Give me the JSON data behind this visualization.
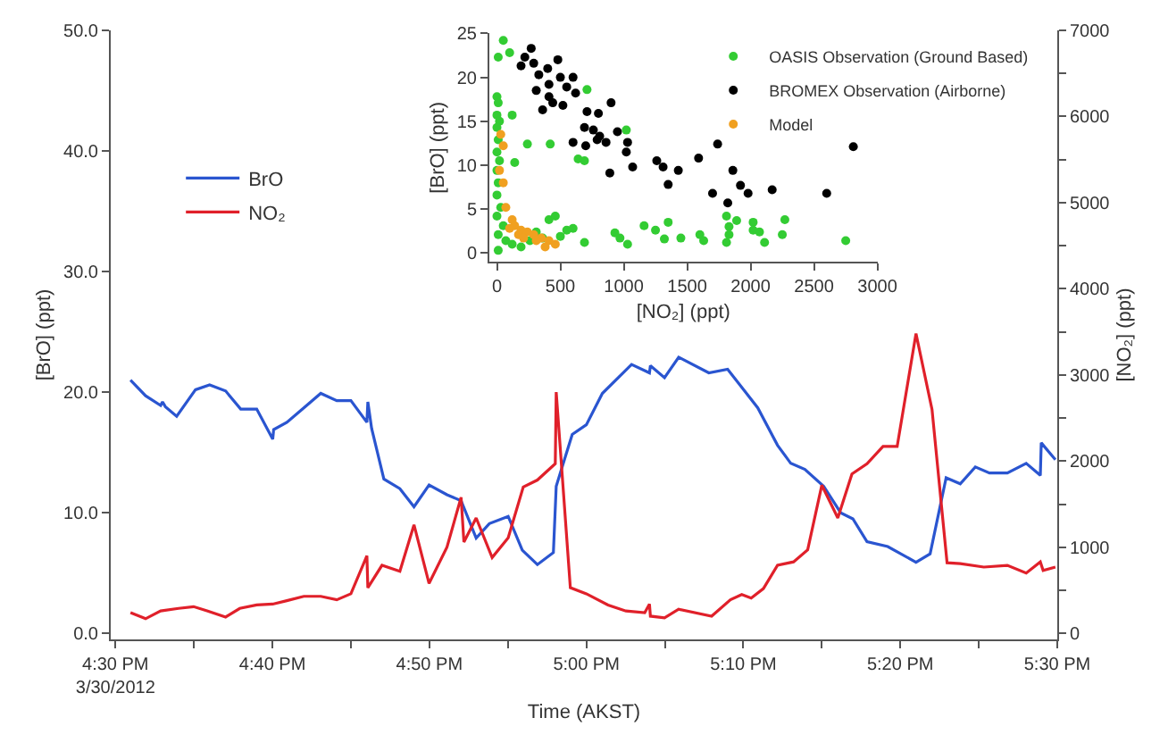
{
  "chart_data": [
    {
      "type": "line",
      "xlabel": "Time (AKST)",
      "ylabel": "[BrO] (ppt)",
      "y2label": "[NO₂] (ppt)",
      "legend": "top left",
      "xlim": [
        16.495,
        17.5
      ],
      "xticks": [
        {
          "value": 16.5,
          "label": "4:30 PM\n3/30/2012"
        },
        {
          "value": 16.5833,
          "label": null
        },
        {
          "value": 16.6667,
          "label": "4:40 PM"
        },
        {
          "value": 16.75,
          "label": null
        },
        {
          "value": 16.8333,
          "label": "4:50 PM"
        },
        {
          "value": 16.9167,
          "label": null
        },
        {
          "value": 17.0,
          "label": "5:00 PM"
        },
        {
          "value": 17.0833,
          "label": null
        },
        {
          "value": 17.1667,
          "label": "5:10 PM"
        },
        {
          "value": 17.25,
          "label": null
        },
        {
          "value": 17.3333,
          "label": "5:20 PM"
        },
        {
          "value": 17.4167,
          "label": null
        },
        {
          "value": 17.5,
          "label": "5:30 PM"
        }
      ],
      "ylim": [
        -0.5,
        50
      ],
      "yticks": [
        {
          "value": 0,
          "label": "0.0"
        },
        {
          "value": 10,
          "label": "10.0"
        },
        {
          "value": 20,
          "label": "20.0"
        },
        {
          "value": 30,
          "label": "30.0"
        },
        {
          "value": 40,
          "label": "40.0"
        },
        {
          "value": 50,
          "label": "50.0"
        }
      ],
      "y2lim": [
        -70,
        7000
      ],
      "y2ticks": [
        0,
        {
          "value": 500,
          "label": null
        },
        1000,
        {
          "value": 1500,
          "label": null
        },
        2000,
        {
          "value": 2500,
          "label": null
        },
        3000,
        {
          "value": 3500,
          "label": null
        },
        4000,
        {
          "value": 4500,
          "label": null
        },
        5000,
        {
          "value": 5500,
          "label": null
        },
        6000,
        {
          "value": 6500,
          "label": null
        },
        7000
      ],
      "series": [
        {
          "name": "BrO",
          "color": "#2a55d0",
          "x": [
            16.516,
            16.532,
            16.548,
            16.55,
            16.553,
            16.565,
            16.585,
            16.6,
            16.617,
            16.633,
            16.65,
            16.667,
            16.668,
            16.682,
            16.7,
            16.718,
            16.735,
            16.75,
            16.767,
            16.768,
            16.772,
            16.785,
            16.802,
            16.817,
            16.833,
            16.852,
            16.867,
            16.883,
            16.897,
            16.917,
            16.932,
            16.948,
            16.965,
            16.968,
            16.985,
            17.0,
            17.017,
            17.048,
            17.067,
            17.068,
            17.083,
            17.098,
            17.13,
            17.15,
            17.168,
            17.182,
            17.203,
            17.217,
            17.232,
            17.252,
            17.27,
            17.283,
            17.298,
            17.32,
            17.35,
            17.365,
            17.382,
            17.397,
            17.413,
            17.428,
            17.447,
            17.467,
            17.482,
            17.483,
            17.498
          ],
          "values": [
            21.0,
            19.7,
            18.9,
            19.2,
            18.8,
            18.0,
            20.2,
            20.6,
            20.1,
            18.6,
            18.6,
            16.1,
            16.9,
            17.5,
            18.7,
            19.9,
            19.3,
            19.3,
            17.5,
            19.2,
            17.0,
            12.8,
            12.0,
            10.5,
            12.3,
            11.5,
            11.0,
            7.9,
            9.1,
            9.7,
            6.9,
            5.7,
            6.7,
            12.2,
            16.5,
            17.3,
            19.9,
            22.3,
            21.6,
            22.2,
            21.2,
            22.9,
            21.6,
            21.9,
            20.1,
            18.7,
            15.6,
            14.1,
            13.6,
            12.2,
            10.0,
            9.5,
            7.6,
            7.2,
            5.9,
            6.6,
            12.9,
            12.4,
            13.8,
            13.3,
            13.3,
            14.1,
            13.1,
            15.8,
            14.4
          ]
        },
        {
          "name": "NO₂",
          "color": "#e0202a",
          "axis": "y2",
          "x": [
            16.516,
            16.532,
            16.548,
            16.567,
            16.583,
            16.598,
            16.617,
            16.632,
            16.65,
            16.667,
            16.682,
            16.7,
            16.718,
            16.735,
            16.75,
            16.767,
            16.768,
            16.783,
            16.802,
            16.817,
            16.833,
            16.852,
            16.867,
            16.87,
            16.883,
            16.9,
            16.917,
            16.933,
            16.948,
            16.967,
            16.968,
            16.983,
            17.0,
            17.023,
            17.042,
            17.062,
            17.067,
            17.068,
            17.083,
            17.098,
            17.133,
            17.153,
            17.165,
            17.175,
            17.188,
            17.203,
            17.22,
            17.235,
            17.25,
            17.267,
            17.282,
            17.298,
            17.315,
            17.33,
            17.35,
            17.367,
            17.383,
            17.397,
            17.422,
            17.447,
            17.467,
            17.482,
            17.485,
            17.498
          ],
          "values": [
            240,
            170,
            260,
            290,
            310,
            260,
            190,
            290,
            330,
            340,
            380,
            430,
            430,
            390,
            460,
            900,
            530,
            790,
            720,
            1260,
            580,
            1000,
            1580,
            1060,
            1340,
            880,
            1110,
            1700,
            1780,
            1970,
            2800,
            530,
            460,
            330,
            260,
            240,
            340,
            200,
            180,
            280,
            200,
            390,
            450,
            410,
            520,
            790,
            830,
            970,
            1720,
            1340,
            1850,
            1970,
            2170,
            2170,
            3480,
            2600,
            820,
            810,
            770,
            790,
            700,
            830,
            730,
            770
          ]
        }
      ]
    },
    {
      "type": "scatter",
      "xlabel": "[NO₂] (ppt)",
      "ylabel": "[BrO] (ppt)",
      "legend": "top right",
      "marker": "circle",
      "xlim": [
        -60,
        3000
      ],
      "xticks": [
        0,
        500,
        1000,
        1500,
        2000,
        2500,
        3000
      ],
      "ylim": [
        -1,
        25
      ],
      "yticks": [
        0,
        5,
        10,
        15,
        20,
        25
      ],
      "series": [
        {
          "name": "OASIS Observation (Ground Based)",
          "color": "#33cc33",
          "x": [
            50,
            10,
            100,
            0,
            10,
            0,
            20,
            120,
            0,
            10,
            0,
            20,
            0,
            10,
            0,
            30,
            0,
            50,
            10,
            70,
            120,
            190,
            260,
            10,
            140,
            240,
            410,
            460,
            420,
            640,
            690,
            710,
            600,
            690,
            500,
            550,
            360,
            310,
            930,
            970,
            1030,
            1020,
            1160,
            1250,
            1320,
            1350,
            1450,
            1600,
            1630,
            1810,
            1890,
            1810,
            1830,
            2020,
            2020,
            2070,
            2110,
            2250,
            2270,
            2750,
            1830
          ],
          "values": [
            24.2,
            22.3,
            22.8,
            17.8,
            17.1,
            15.7,
            15.0,
            15.7,
            14.3,
            12.9,
            11.5,
            10.5,
            9.4,
            8.0,
            6.6,
            5.2,
            4.2,
            3.1,
            2.1,
            1.4,
            1.0,
            0.7,
            1.4,
            0.3,
            10.3,
            12.4,
            3.8,
            4.2,
            12.4,
            10.7,
            10.5,
            18.6,
            2.8,
            1.2,
            1.9,
            2.6,
            1.7,
            2.4,
            2.3,
            1.7,
            1.0,
            14.0,
            3.1,
            2.6,
            1.6,
            3.5,
            1.7,
            2.1,
            1.4,
            4.2,
            3.7,
            1.2,
            3.0,
            3.5,
            2.6,
            2.4,
            1.2,
            2.1,
            3.8,
            1.4,
            2.1
          ]
        },
        {
          "name": "BROMEX Observation (Airborne)",
          "color": "#000000",
          "x": [
            220,
            290,
            190,
            270,
            330,
            410,
            480,
            400,
            310,
            360,
            440,
            500,
            550,
            600,
            620,
            410,
            520,
            600,
            710,
            800,
            690,
            760,
            810,
            860,
            790,
            700,
            900,
            950,
            1030,
            1020,
            1070,
            890,
            1260,
            1310,
            1350,
            1430,
            1590,
            1740,
            1700,
            1820,
            1860,
            1920,
            1980,
            2170,
            2600,
            2810
          ],
          "values": [
            22.3,
            21.6,
            21.3,
            23.3,
            20.3,
            19.2,
            22.0,
            21.0,
            18.5,
            16.3,
            17.1,
            20.0,
            18.9,
            20.0,
            18.2,
            17.8,
            16.8,
            12.6,
            16.1,
            15.9,
            14.3,
            14.0,
            13.3,
            12.6,
            12.9,
            12.2,
            17.1,
            13.8,
            12.6,
            11.5,
            9.8,
            9.1,
            10.5,
            9.8,
            7.8,
            9.4,
            10.8,
            12.4,
            6.8,
            5.7,
            9.4,
            7.7,
            6.8,
            7.2,
            6.8,
            12.1
          ]
        },
        {
          "name": "Model",
          "color": "#f0a020",
          "x": [
            30,
            50,
            20,
            50,
            70,
            120,
            140,
            190,
            240,
            290,
            350,
            410,
            460,
            310,
            170,
            100,
            210,
            380
          ],
          "values": [
            13.5,
            12.2,
            9.4,
            8.0,
            5.2,
            3.8,
            3.1,
            2.6,
            2.4,
            2.1,
            1.7,
            1.4,
            1.0,
            1.4,
            2.1,
            2.8,
            1.7,
            0.7
          ]
        }
      ]
    }
  ]
}
